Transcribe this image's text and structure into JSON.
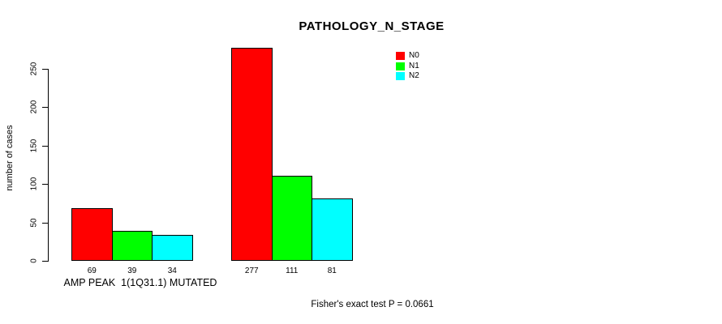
{
  "chart_data": {
    "type": "bar",
    "title": "PATHOLOGY_N_STAGE",
    "ylabel": "number of cases",
    "xlabel": "",
    "categories": [
      "AMP PEAK  1(1Q31.1) MUTATED",
      ""
    ],
    "series": [
      {
        "name": "N0",
        "color": "#ff0000",
        "values": [
          69,
          277
        ]
      },
      {
        "name": "N1",
        "color": "#00ff00",
        "values": [
          39,
          111
        ]
      },
      {
        "name": "N2",
        "color": "#00ffff",
        "values": [
          34,
          81
        ]
      }
    ],
    "y_ticks": [
      0,
      50,
      100,
      150,
      200,
      250
    ],
    "ylim": [
      0,
      250
    ],
    "grid": false,
    "bar_value_labels": true,
    "legend": {
      "position": "top-right",
      "entries": [
        "N0",
        "N1",
        "N2"
      ]
    },
    "footer": "Fisher's exact test P = 0.0661"
  }
}
